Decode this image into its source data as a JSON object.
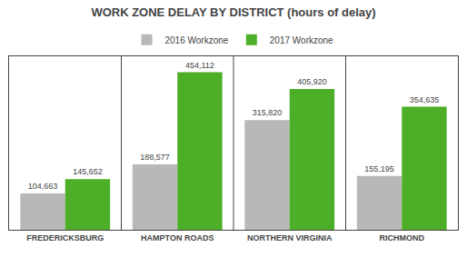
{
  "chart_data": {
    "type": "bar",
    "title": "WORK ZONE DELAY BY DISTRICT (hours of delay)",
    "categories": [
      "FREDERICKSBURG",
      "HAMPTON ROADS",
      "NORTHERN VIRGINIA",
      "RICHMOND"
    ],
    "series": [
      {
        "name": "2016 Workzone",
        "color": "#b8b8b8",
        "values": [
          104663,
          188577,
          315820,
          155195
        ],
        "value_labels": [
          "104,663",
          "188,577",
          "315,820",
          "155,195"
        ]
      },
      {
        "name": "2017 Workzone",
        "color": "#4daf27",
        "values": [
          145652,
          454112,
          405920,
          354635
        ],
        "value_labels": [
          "145,652",
          "454,112",
          "405,920",
          "354,635"
        ]
      }
    ],
    "ylim": [
      0,
      500000
    ],
    "grid": false,
    "legend": "top",
    "data_labels": true,
    "tick_labels": "x"
  }
}
